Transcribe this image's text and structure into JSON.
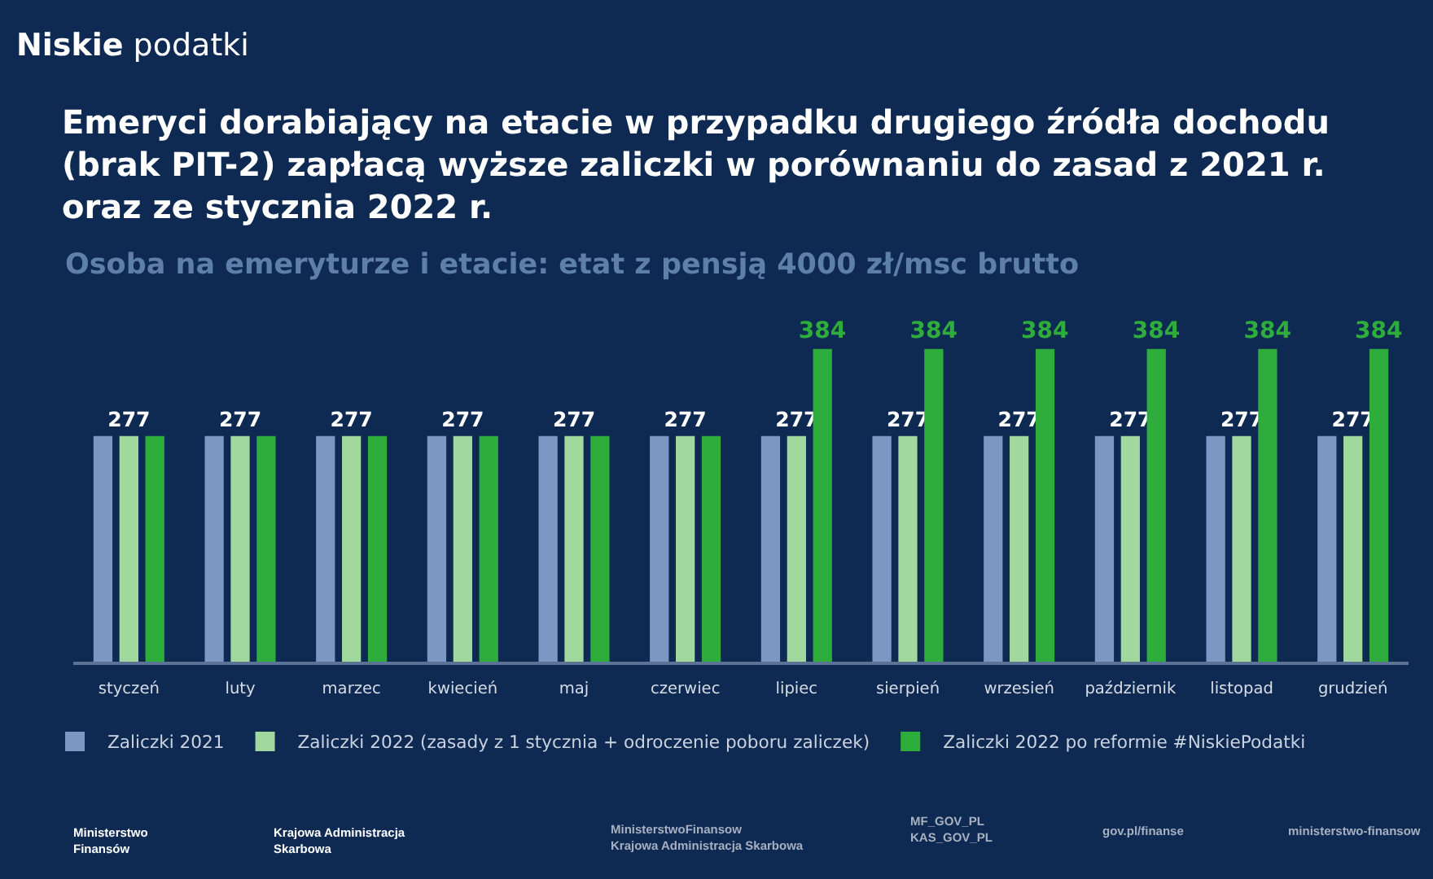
{
  "chart_data": {
    "type": "bar",
    "title": "Emeryci dorabiający na etacie w przypadku drugiego źródła dochodu\n(brak PIT-2) zapłacą wyższe zaliczki w porównaniu do zasad z 2021 r.\noraz ze stycznia 2022 r.",
    "subtitle": "Osoba na emeryturze i etacie: etat z pensją 4000 zł/msc brutto",
    "categories": [
      "styczeń",
      "luty",
      "marzec",
      "kwiecień",
      "maj",
      "czerwiec",
      "lipiec",
      "sierpień",
      "wrzesień",
      "październik",
      "listopad",
      "grudzień"
    ],
    "series": [
      {
        "name": "Zaliczki 2021",
        "color": "#7b98c4",
        "values": [
          277,
          277,
          277,
          277,
          277,
          277,
          277,
          277,
          277,
          277,
          277,
          277
        ]
      },
      {
        "name": "Zaliczki 2022 (zasady z 1 stycznia + odroczenie poboru zaliczek)",
        "color": "#a0d89e",
        "values": [
          277,
          277,
          277,
          277,
          277,
          277,
          277,
          277,
          277,
          277,
          277,
          277
        ],
        "value_labels": [
          "277",
          "277",
          "277",
          "277",
          "277",
          "277",
          "277",
          "277",
          "277",
          "277",
          "277",
          "277"
        ]
      },
      {
        "name": "Zaliczki 2022 po reformie #NiskiePodatki",
        "color": "#2eac3c",
        "values": [
          277,
          277,
          277,
          277,
          277,
          277,
          384,
          384,
          384,
          384,
          384,
          384
        ],
        "value_labels": [
          null,
          null,
          null,
          null,
          null,
          null,
          "384",
          "384",
          "384",
          "384",
          "384",
          "384"
        ]
      }
    ],
    "legend": "bottom",
    "tick_labels": "x",
    "annotations": [
      "Niskie podatki",
      "Ministerstwo\nFinansów",
      "Krajowa Administracja\nSkarbowa",
      "MinisterstwoFinansow\nKrajowa Administracja Skarbowa",
      "MF_GOV_PL\nKAS_GOV_PL",
      "gov.pl/finanse",
      "ministerstwo-finansow"
    ]
  }
}
